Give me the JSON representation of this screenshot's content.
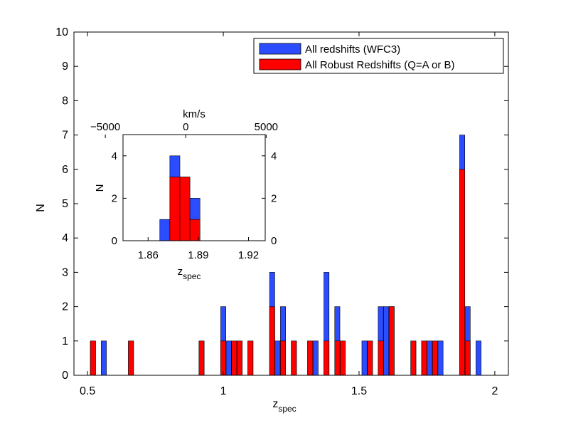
{
  "chart_data": [
    {
      "type": "bar",
      "subtype": "stacked-histogram",
      "xlabel": "z",
      "xlabel_sub": "spec",
      "ylabel": "N",
      "xlim": [
        0.45,
        2.05
      ],
      "ylim": [
        0,
        10
      ],
      "xticks": [
        0.5,
        1,
        1.5,
        2
      ],
      "xtick_labels": [
        "0.5",
        "1",
        "1.5",
        "2"
      ],
      "yticks": [
        0,
        1,
        2,
        3,
        4,
        5,
        6,
        7,
        8,
        9,
        10
      ],
      "ytick_labels": [
        "0",
        "1",
        "2",
        "3",
        "4",
        "5",
        "6",
        "7",
        "8",
        "9",
        "10"
      ],
      "bin_width": 0.02,
      "legend": {
        "position": "top-right",
        "entries": [
          {
            "label": "All redshifts (WFC3)",
            "color": "#2b4dff"
          },
          {
            "label": "All Robust Redshifts (Q=A or B)",
            "color": "#ff0000"
          }
        ]
      },
      "series": [
        {
          "name": "All redshifts (WFC3)",
          "color": "#2b4dff",
          "bins": [
            {
              "x": 0.52,
              "n": 1
            },
            {
              "x": 0.56,
              "n": 1
            },
            {
              "x": 0.66,
              "n": 1
            },
            {
              "x": 0.92,
              "n": 1
            },
            {
              "x": 1.0,
              "n": 2
            },
            {
              "x": 1.02,
              "n": 1
            },
            {
              "x": 1.04,
              "n": 1
            },
            {
              "x": 1.06,
              "n": 1
            },
            {
              "x": 1.1,
              "n": 1
            },
            {
              "x": 1.18,
              "n": 3
            },
            {
              "x": 1.2,
              "n": 1
            },
            {
              "x": 1.22,
              "n": 2
            },
            {
              "x": 1.26,
              "n": 1
            },
            {
              "x": 1.32,
              "n": 1
            },
            {
              "x": 1.34,
              "n": 1
            },
            {
              "x": 1.38,
              "n": 3
            },
            {
              "x": 1.42,
              "n": 2
            },
            {
              "x": 1.44,
              "n": 1
            },
            {
              "x": 1.52,
              "n": 1
            },
            {
              "x": 1.54,
              "n": 1
            },
            {
              "x": 1.58,
              "n": 2
            },
            {
              "x": 1.6,
              "n": 2
            },
            {
              "x": 1.62,
              "n": 2
            },
            {
              "x": 1.7,
              "n": 1
            },
            {
              "x": 1.74,
              "n": 1
            },
            {
              "x": 1.76,
              "n": 1
            },
            {
              "x": 1.78,
              "n": 1
            },
            {
              "x": 1.8,
              "n": 1
            },
            {
              "x": 1.88,
              "n": 7
            },
            {
              "x": 1.9,
              "n": 2
            },
            {
              "x": 1.94,
              "n": 1
            }
          ]
        },
        {
          "name": "All Robust Redshifts (Q=A or B)",
          "color": "#ff0000",
          "bins": [
            {
              "x": 0.52,
              "n": 1
            },
            {
              "x": 0.66,
              "n": 1
            },
            {
              "x": 0.92,
              "n": 1
            },
            {
              "x": 1.0,
              "n": 1
            },
            {
              "x": 1.04,
              "n": 1
            },
            {
              "x": 1.06,
              "n": 1
            },
            {
              "x": 1.1,
              "n": 1
            },
            {
              "x": 1.18,
              "n": 2
            },
            {
              "x": 1.22,
              "n": 1
            },
            {
              "x": 1.26,
              "n": 1
            },
            {
              "x": 1.32,
              "n": 1
            },
            {
              "x": 1.38,
              "n": 1
            },
            {
              "x": 1.42,
              "n": 1
            },
            {
              "x": 1.44,
              "n": 1
            },
            {
              "x": 1.54,
              "n": 1
            },
            {
              "x": 1.58,
              "n": 1
            },
            {
              "x": 1.62,
              "n": 2
            },
            {
              "x": 1.7,
              "n": 1
            },
            {
              "x": 1.74,
              "n": 1
            },
            {
              "x": 1.78,
              "n": 1
            },
            {
              "x": 1.88,
              "n": 6
            },
            {
              "x": 1.9,
              "n": 1
            }
          ]
        }
      ]
    },
    {
      "type": "bar",
      "subtype": "stacked-histogram-inset",
      "xlabel": "z",
      "xlabel_sub": "spec",
      "ylabel": "N",
      "top_xlabel": "km/s",
      "xlim": [
        1.845,
        1.93
      ],
      "ylim": [
        0,
        5
      ],
      "xticks": [
        1.86,
        1.89,
        1.92
      ],
      "xtick_labels": [
        "1.86",
        "1.89",
        "1.92"
      ],
      "yticks": [
        0,
        2,
        4
      ],
      "ytick_labels": [
        "0",
        "2",
        "4"
      ],
      "top_xticks": [
        -5000,
        0,
        5000
      ],
      "top_xtick_labels": [
        "−5000",
        "0",
        "5000"
      ],
      "top_axis_zero_z": 1.8825,
      "bin_width": 0.006,
      "series": [
        {
          "name": "All redshifts (WFC3)",
          "color": "#2b4dff",
          "bins": [
            {
              "x0": 1.867,
              "x1": 1.873,
              "n": 1
            },
            {
              "x0": 1.873,
              "x1": 1.879,
              "n": 4
            },
            {
              "x0": 1.879,
              "x1": 1.885,
              "n": 3
            },
            {
              "x0": 1.885,
              "x1": 1.891,
              "n": 2
            }
          ]
        },
        {
          "name": "All Robust Redshifts (Q=A or B)",
          "color": "#ff0000",
          "bins": [
            {
              "x0": 1.873,
              "x1": 1.879,
              "n": 3
            },
            {
              "x0": 1.879,
              "x1": 1.885,
              "n": 3
            },
            {
              "x0": 1.885,
              "x1": 1.891,
              "n": 1
            }
          ]
        }
      ]
    }
  ]
}
